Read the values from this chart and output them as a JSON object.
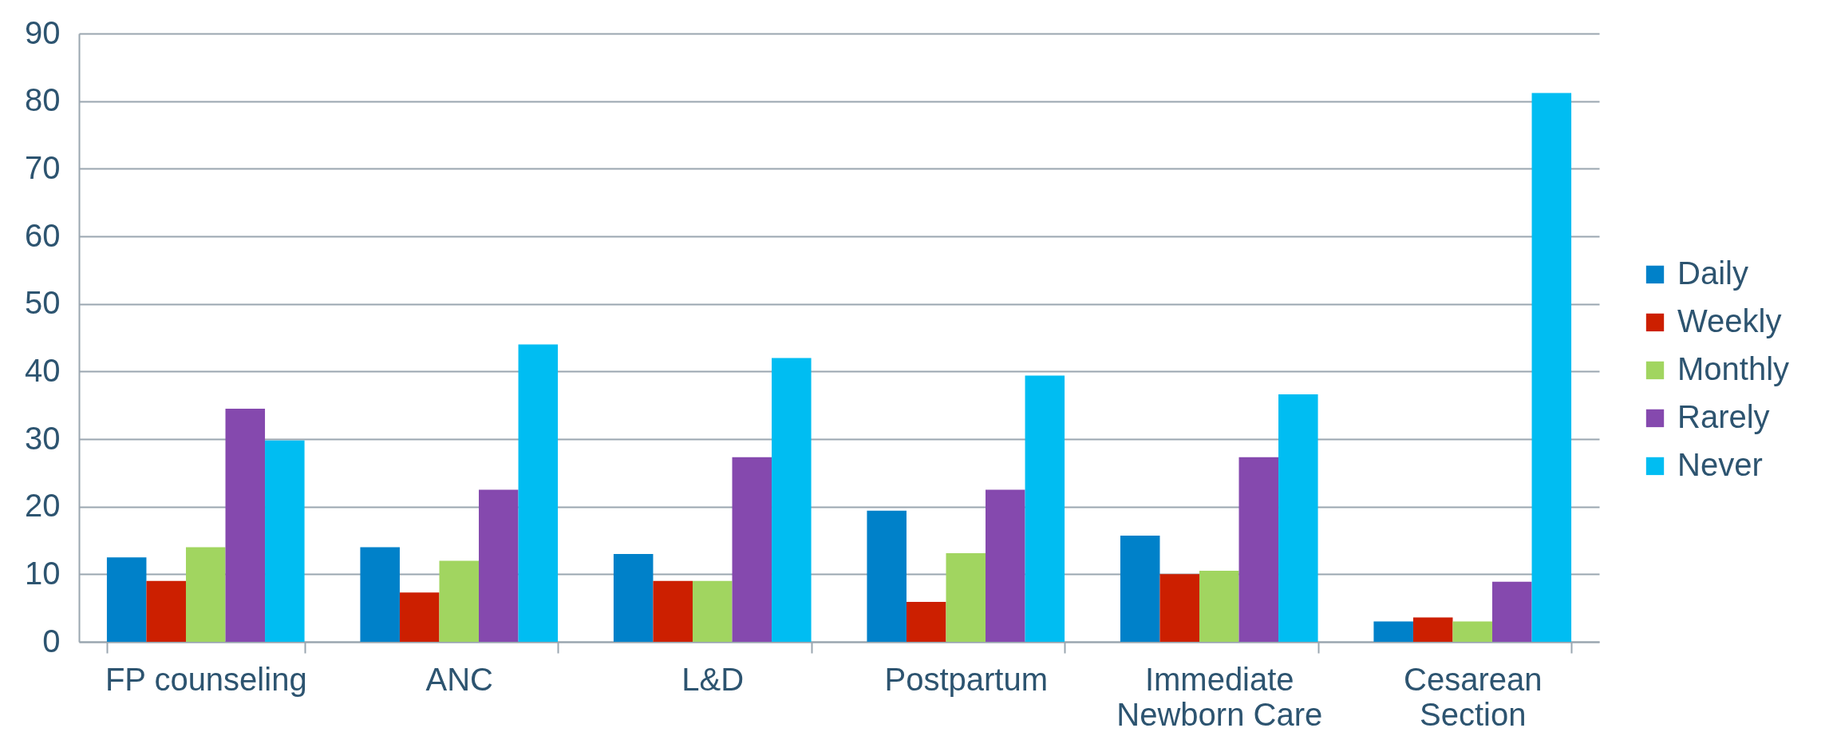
{
  "chart_data": {
    "type": "bar",
    "categories": [
      "FP counseling",
      "ANC",
      "L&D",
      "Postpartum",
      "Immediate Newborn Care",
      "Cesarean Section"
    ],
    "series": [
      {
        "name": "Daily",
        "color": "#0081c9",
        "values": [
          12.5,
          14,
          13,
          19.4,
          15.7,
          3
        ]
      },
      {
        "name": "Weekly",
        "color": "#cc1f00",
        "values": [
          9,
          7.3,
          9,
          5.9,
          10,
          3.6
        ]
      },
      {
        "name": "Monthly",
        "color": "#a1d560",
        "values": [
          14,
          12,
          9,
          13.1,
          10.5,
          3
        ]
      },
      {
        "name": "Rarely",
        "color": "#8549ae",
        "values": [
          34.5,
          22.5,
          27.3,
          22.5,
          27.3,
          8.9
        ]
      },
      {
        "name": "Never",
        "color": "#00bdf2",
        "values": [
          29.8,
          44,
          42,
          39.4,
          36.6,
          81.2
        ]
      }
    ],
    "ylim": [
      0,
      90
    ],
    "yticks": [
      0,
      10,
      20,
      30,
      40,
      50,
      60,
      70,
      80,
      90
    ],
    "grid": "y",
    "legend": "right"
  }
}
